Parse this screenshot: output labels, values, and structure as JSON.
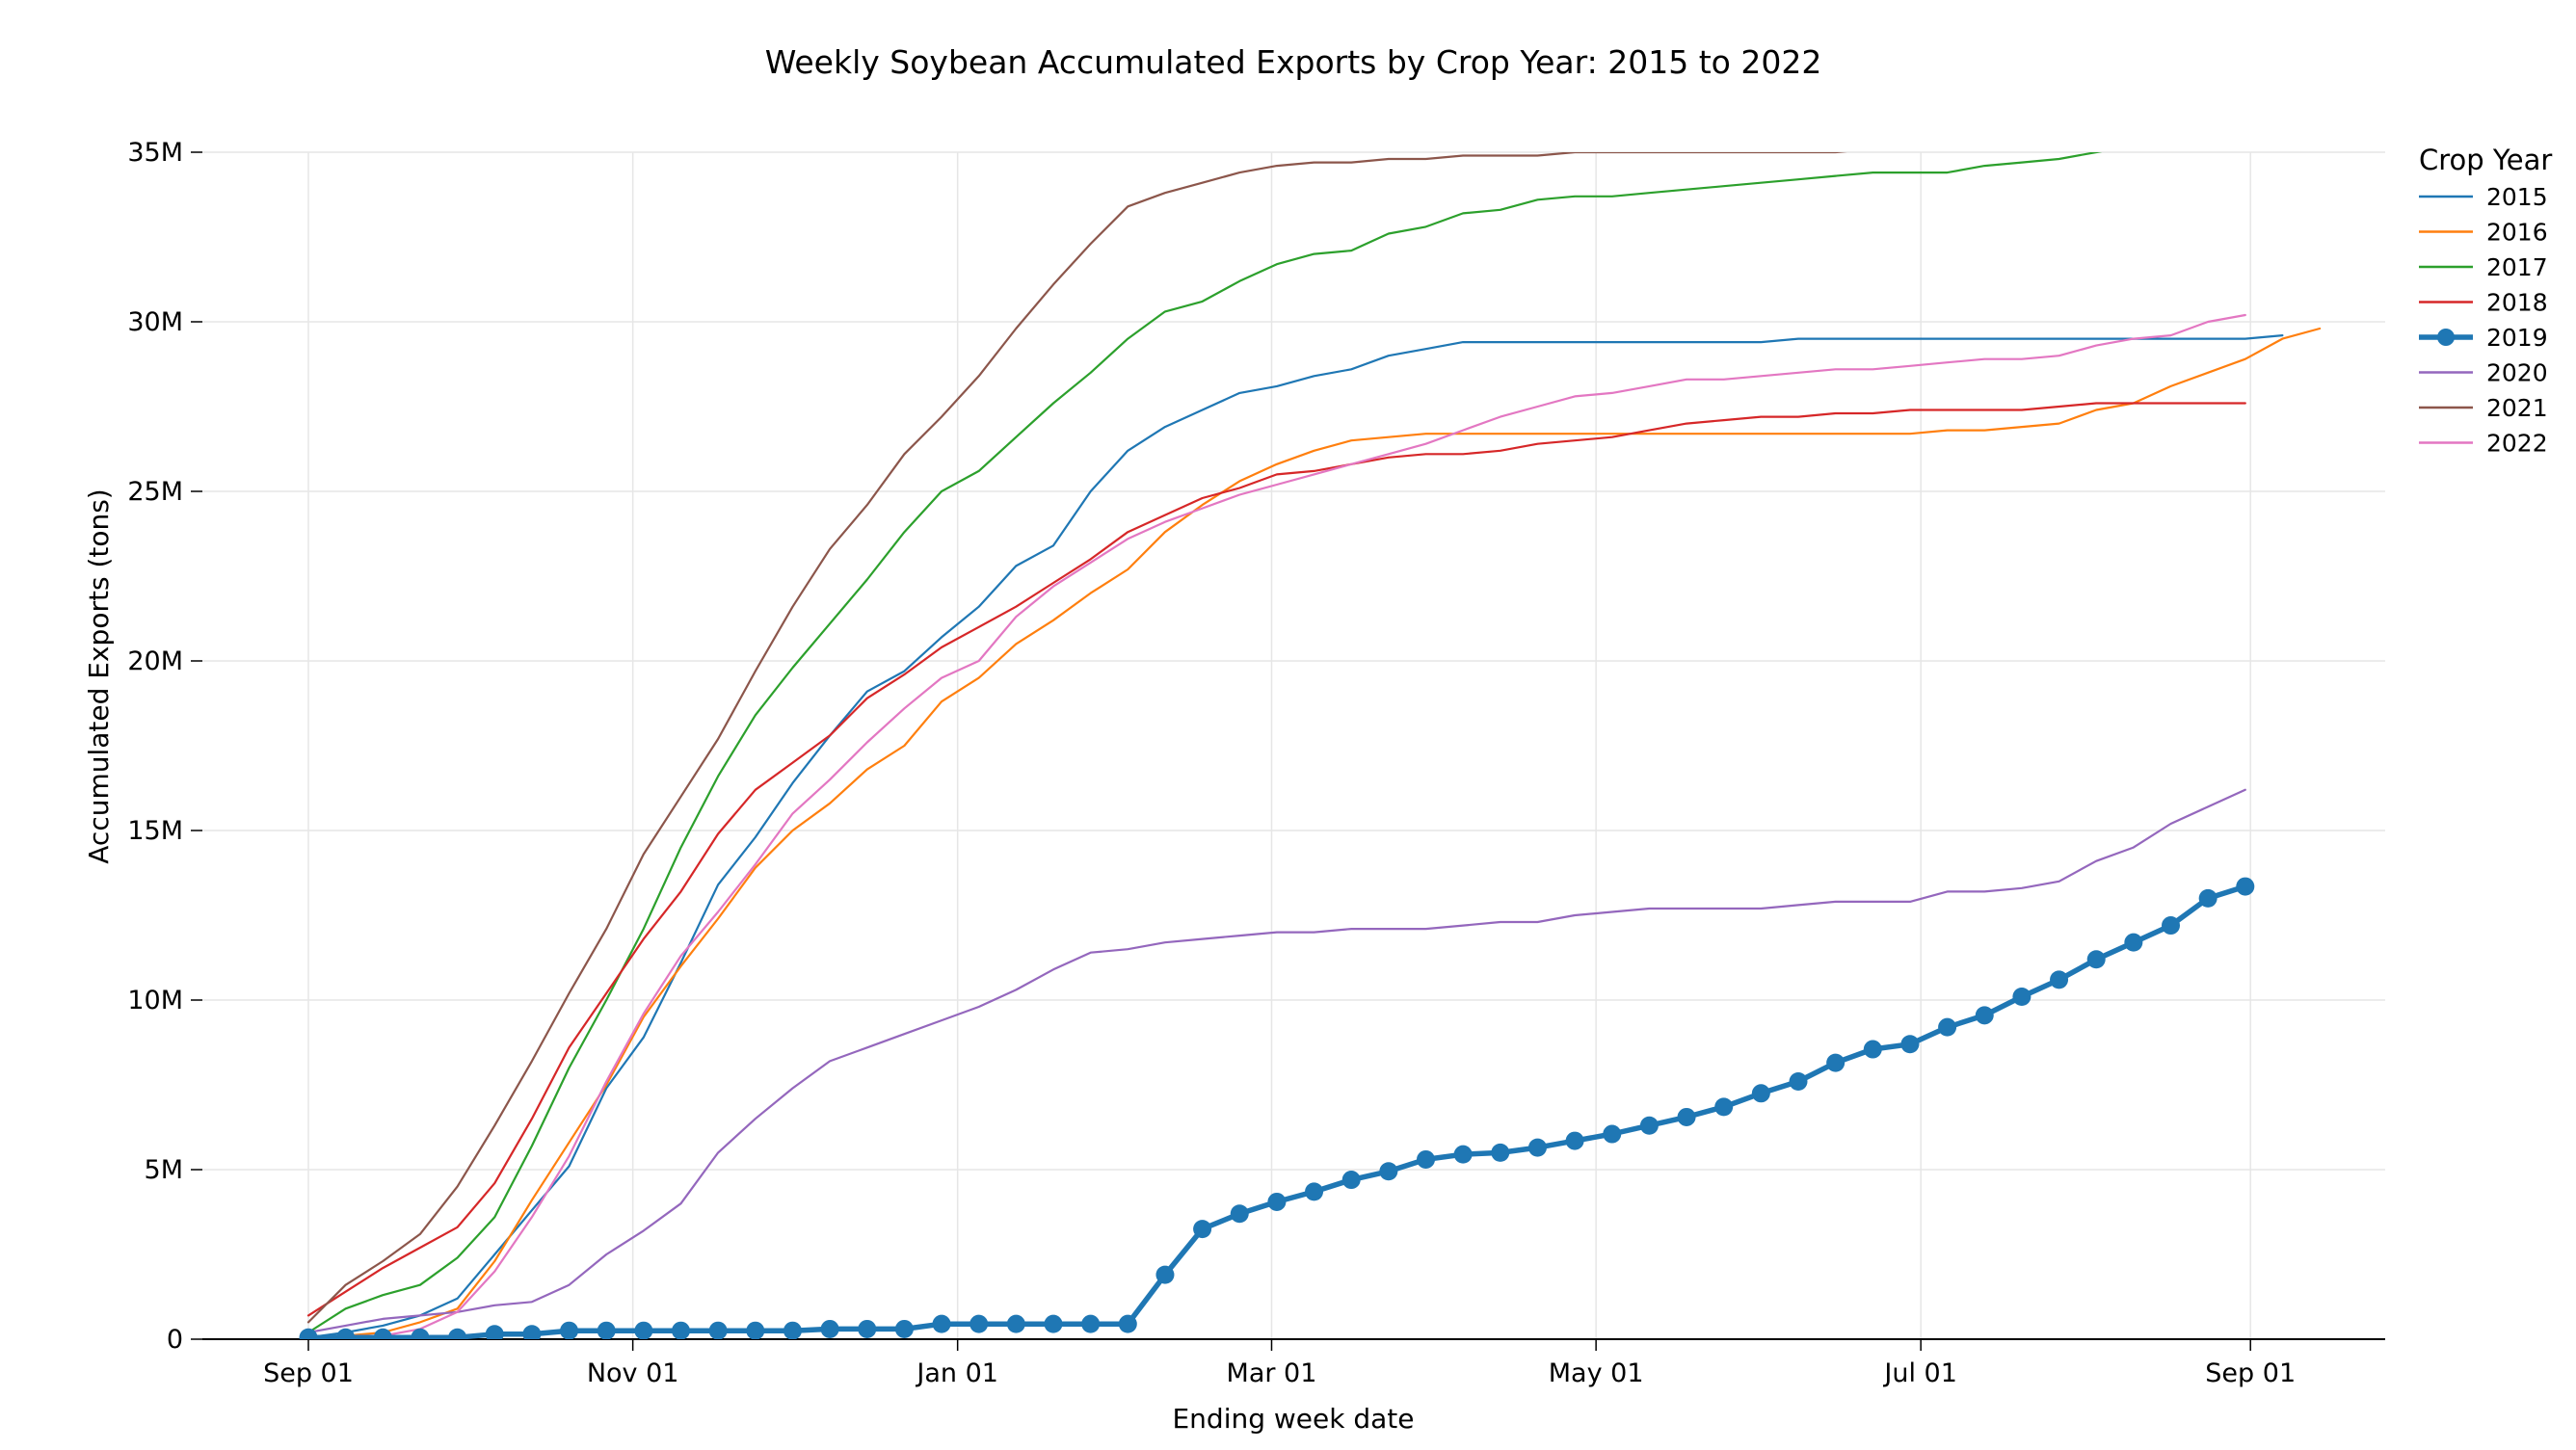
{
  "chart_data": {
    "type": "line",
    "title": "Weekly Soybean Accumulated Exports by Crop Year: 2015 to 2022",
    "xlabel": "Ending week date",
    "ylabel": "Accumulated Exports (tons)",
    "ylim": [
      0,
      35000000
    ],
    "y_ticks": [
      {
        "value": 0,
        "label": "0"
      },
      {
        "value": 5000000,
        "label": "5M"
      },
      {
        "value": 10000000,
        "label": "10M"
      },
      {
        "value": 15000000,
        "label": "15M"
      },
      {
        "value": 20000000,
        "label": "20M"
      },
      {
        "value": 25000000,
        "label": "25M"
      },
      {
        "value": 30000000,
        "label": "30M"
      },
      {
        "value": 35000000,
        "label": "35M"
      }
    ],
    "x_ticks": [
      {
        "week": 0,
        "label": "Sep 01"
      },
      {
        "week": 8.71,
        "label": "Nov 01"
      },
      {
        "week": 17.43,
        "label": "Jan 01"
      },
      {
        "week": 25.86,
        "label": "Mar 01"
      },
      {
        "week": 34.57,
        "label": "May 01"
      },
      {
        "week": 43.29,
        "label": "Jul 01"
      },
      {
        "week": 52.14,
        "label": "Sep 01"
      }
    ],
    "grid": true,
    "legend_title": "Crop Year",
    "legend_position": "right",
    "x_note": "x = ending week index (week 0 = first ending week of September)",
    "series": [
      {
        "name": "2015",
        "color": "#1f77b4",
        "highlight": false,
        "values": [
          0.05,
          0.2,
          0.4,
          0.7,
          1.2,
          2.5,
          3.8,
          5.1,
          7.4,
          8.9,
          11.1,
          13.4,
          14.8,
          16.4,
          17.8,
          19.1,
          19.7,
          20.7,
          21.6,
          22.8,
          23.4,
          25.0,
          26.2,
          26.9,
          27.4,
          27.9,
          28.1,
          28.4,
          28.6,
          29.0,
          29.2,
          29.4,
          29.4,
          29.4,
          29.4,
          29.4,
          29.4,
          29.4,
          29.4,
          29.4,
          29.5,
          29.5,
          29.5,
          29.5,
          29.5,
          29.5,
          29.5,
          29.5,
          29.5,
          29.5,
          29.5,
          29.5,
          29.5,
          29.6
        ]
      },
      {
        "name": "2016",
        "color": "#ff7f0e",
        "highlight": false,
        "values": [
          0.05,
          0.1,
          0.2,
          0.5,
          0.9,
          2.3,
          4.1,
          5.8,
          7.5,
          9.5,
          11.0,
          12.4,
          13.9,
          15.0,
          15.8,
          16.8,
          17.5,
          18.8,
          19.5,
          20.5,
          21.2,
          22.0,
          22.7,
          23.8,
          24.6,
          25.3,
          25.8,
          26.2,
          26.5,
          26.6,
          26.7,
          26.7,
          26.7,
          26.7,
          26.7,
          26.7,
          26.7,
          26.7,
          26.7,
          26.7,
          26.7,
          26.7,
          26.7,
          26.7,
          26.8,
          26.8,
          26.9,
          27.0,
          27.4,
          27.6,
          28.1,
          28.5,
          28.9,
          29.5,
          29.8
        ]
      },
      {
        "name": "2017",
        "color": "#2ca02c",
        "highlight": false,
        "values": [
          0.2,
          0.9,
          1.3,
          1.6,
          2.4,
          3.6,
          5.7,
          8.0,
          10.0,
          12.1,
          14.5,
          16.6,
          18.4,
          19.8,
          21.1,
          22.4,
          23.8,
          25.0,
          25.6,
          26.6,
          27.6,
          28.5,
          29.5,
          30.3,
          30.6,
          31.2,
          31.7,
          32.0,
          32.1,
          32.6,
          32.8,
          33.2,
          33.3,
          33.6,
          33.7,
          33.7,
          33.8,
          33.9,
          34.0,
          34.1,
          34.2,
          34.3,
          34.4,
          34.4,
          34.4,
          34.6,
          34.7,
          34.8,
          35.0,
          35.2,
          35.5,
          35.8,
          36.0,
          36.3
        ]
      },
      {
        "name": "2018",
        "color": "#d62728",
        "highlight": false,
        "values": [
          0.7,
          1.4,
          2.1,
          2.7,
          3.3,
          4.6,
          6.5,
          8.6,
          10.2,
          11.8,
          13.2,
          14.9,
          16.2,
          17.0,
          17.8,
          18.9,
          19.6,
          20.4,
          21.0,
          21.6,
          22.3,
          23.0,
          23.8,
          24.3,
          24.8,
          25.1,
          25.5,
          25.6,
          25.8,
          26.0,
          26.1,
          26.1,
          26.2,
          26.4,
          26.5,
          26.6,
          26.8,
          27.0,
          27.1,
          27.2,
          27.2,
          27.3,
          27.3,
          27.4,
          27.4,
          27.4,
          27.4,
          27.5,
          27.6,
          27.6,
          27.6,
          27.6,
          27.6
        ]
      },
      {
        "name": "2019",
        "color": "#1f77b4",
        "highlight": true,
        "values": [
          0.05,
          0.05,
          0.05,
          0.05,
          0.05,
          0.15,
          0.15,
          0.25,
          0.25,
          0.25,
          0.25,
          0.25,
          0.25,
          0.25,
          0.3,
          0.3,
          0.3,
          0.45,
          0.45,
          0.45,
          0.45,
          0.45,
          0.45,
          1.9,
          3.25,
          3.7,
          4.05,
          4.35,
          4.7,
          4.95,
          5.3,
          5.45,
          5.5,
          5.65,
          5.85,
          6.05,
          6.3,
          6.55,
          6.85,
          7.25,
          7.6,
          8.15,
          8.55,
          8.7,
          9.2,
          9.55,
          10.1,
          10.6,
          11.2,
          11.7,
          12.2,
          13.0,
          13.35
        ]
      },
      {
        "name": "2020",
        "color": "#9467bd",
        "highlight": false,
        "values": [
          0.2,
          0.4,
          0.6,
          0.7,
          0.8,
          1.0,
          1.1,
          1.6,
          2.5,
          3.2,
          4.0,
          5.5,
          6.5,
          7.4,
          8.2,
          8.6,
          9.0,
          9.4,
          9.8,
          10.3,
          10.9,
          11.4,
          11.5,
          11.7,
          11.8,
          11.9,
          12.0,
          12.0,
          12.1,
          12.1,
          12.1,
          12.2,
          12.3,
          12.3,
          12.5,
          12.6,
          12.7,
          12.7,
          12.7,
          12.7,
          12.8,
          12.9,
          12.9,
          12.9,
          13.2,
          13.2,
          13.3,
          13.5,
          14.1,
          14.5,
          15.2,
          15.7,
          16.2
        ]
      },
      {
        "name": "2021",
        "color": "#8c564b",
        "highlight": false,
        "values": [
          0.5,
          1.6,
          2.3,
          3.1,
          4.5,
          6.3,
          8.2,
          10.2,
          12.1,
          14.3,
          16.0,
          17.7,
          19.7,
          21.6,
          23.3,
          24.6,
          26.1,
          27.2,
          28.4,
          29.8,
          31.1,
          32.3,
          33.4,
          33.8,
          34.1,
          34.4,
          34.6,
          34.7,
          34.7,
          34.8,
          34.8,
          34.9,
          34.9,
          34.9,
          35.0,
          35.0,
          35.0,
          35.0,
          35.0,
          35.0,
          35.0,
          35.0,
          35.1,
          35.1,
          35.1,
          35.1,
          35.2,
          35.2,
          35.2,
          35.3,
          35.3,
          35.3,
          35.3,
          35.3
        ]
      },
      {
        "name": "2022",
        "color": "#e377c2",
        "highlight": false,
        "values": [
          0.0,
          0.1,
          0.1,
          0.3,
          0.8,
          2.0,
          3.6,
          5.4,
          7.6,
          9.6,
          11.3,
          12.6,
          14.0,
          15.5,
          16.5,
          17.6,
          18.6,
          19.5,
          20.0,
          21.3,
          22.2,
          22.9,
          23.6,
          24.1,
          24.5,
          24.9,
          25.2,
          25.5,
          25.8,
          26.1,
          26.4,
          26.8,
          27.2,
          27.5,
          27.8,
          27.9,
          28.1,
          28.3,
          28.3,
          28.4,
          28.5,
          28.6,
          28.6,
          28.7,
          28.8,
          28.9,
          28.9,
          29.0,
          29.3,
          29.5,
          29.6,
          30.0,
          30.2
        ]
      }
    ]
  }
}
